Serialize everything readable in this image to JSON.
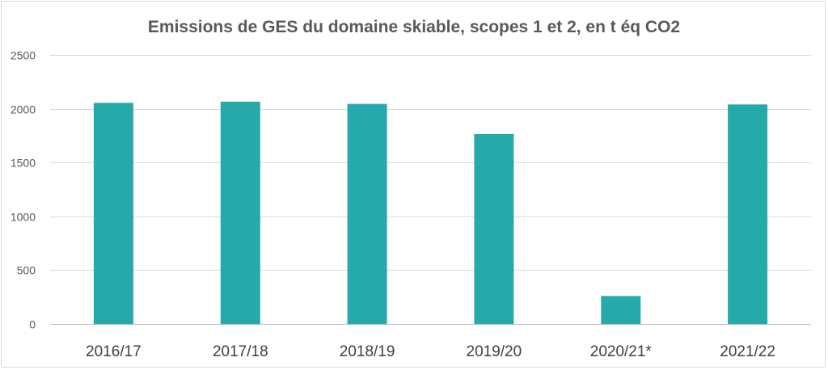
{
  "chart_data": {
    "type": "bar",
    "title": "Emissions de GES du domaine skiable, scopes 1 et 2, en t éq CO2",
    "categories": [
      "2016/17",
      "2017/18",
      "2018/19",
      "2019/20",
      "2020/21*",
      "2021/22"
    ],
    "values": [
      2055,
      2065,
      2045,
      1765,
      260,
      2040
    ],
    "xlabel": "",
    "ylabel": "",
    "ylim": [
      0,
      2500
    ],
    "yticks": [
      0,
      500,
      1000,
      1500,
      2000,
      2500
    ],
    "grid": true,
    "legend": "none",
    "bar_color": "#26a9ab"
  }
}
